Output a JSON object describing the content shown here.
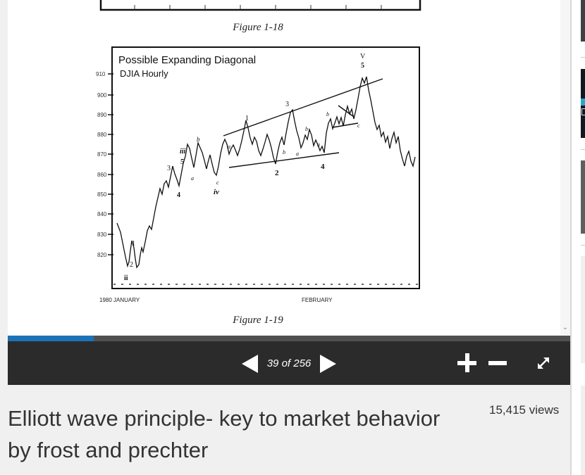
{
  "document": {
    "figure_top_caption": "Figure 1-18",
    "figure_caption": "Figure 1-19",
    "chart_title": "Possible Expanding Diagonal",
    "chart_subtitle": "DJIA Hourly",
    "y_ticks": [
      "910",
      "900",
      "890",
      "880",
      "870",
      "860",
      "850",
      "840",
      "830",
      "820"
    ],
    "x_labels": [
      "1980 JANUARY",
      "FEBRUARY"
    ],
    "wave_labels": [
      "1",
      "2",
      "ii",
      "3",
      "4",
      "iii",
      "5",
      "a",
      "b",
      "c",
      "iv",
      "1",
      "a",
      "b",
      "2",
      "a",
      "3",
      "b",
      "a",
      "4",
      "b",
      "c",
      "V",
      "5"
    ]
  },
  "viewer": {
    "page_counter": "39 of 256",
    "progress": 0.153,
    "accent_color": "#1b72b6",
    "controls": {
      "prev": "previous-page-icon",
      "next": "next-page-icon",
      "zoom_in": "plus-icon",
      "zoom_out": "minus-icon",
      "fullscreen": "expand-icon"
    }
  },
  "meta": {
    "title": "Elliott wave principle- key to market behavior by frost and prechter",
    "views": "15,415 views"
  }
}
